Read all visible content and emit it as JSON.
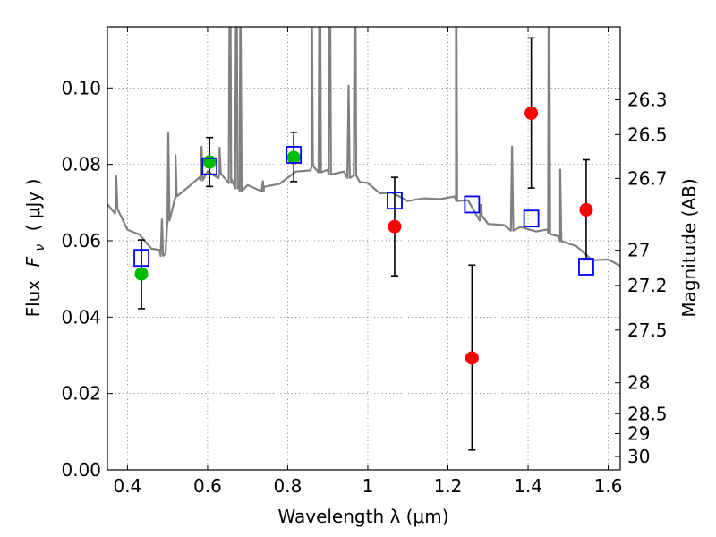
{
  "chart_data": {
    "type": "scatter",
    "xlabel": "Wavelength  λ (μm)",
    "ylabel_left_text": "Flux",
    "ylabel_left_symbol": "F",
    "ylabel_left_symbol_sub": "ν",
    "ylabel_left_unit": "( μJy )",
    "ylabel_right": "Magnitude (AB)",
    "xlim": [
      0.35,
      1.63
    ],
    "ylim": [
      0.0,
      0.116
    ],
    "grid": true,
    "x_ticks": [
      0.4,
      0.6,
      0.8,
      1.0,
      1.2,
      1.4,
      1.6
    ],
    "x_tick_labels": [
      "0.4",
      "0.6",
      "0.8",
      "1",
      "1.2",
      "1.4",
      "1.6"
    ],
    "y_ticks": [
      0.0,
      0.02,
      0.04,
      0.06,
      0.08,
      0.1
    ],
    "y_tick_labels": [
      "0.00",
      "0.02",
      "0.04",
      "0.06",
      "0.08",
      "0.10"
    ],
    "right_ticks": [
      {
        "label": "26.3",
        "flux": 0.0969
      },
      {
        "label": "26.5",
        "flux": 0.0878
      },
      {
        "label": "26.7",
        "flux": 0.0763
      },
      {
        "label": "27",
        "flux": 0.0575
      },
      {
        "label": "27.2",
        "flux": 0.0483
      },
      {
        "label": "27.5",
        "flux": 0.0366
      },
      {
        "label": "28",
        "flux": 0.0228
      },
      {
        "label": "28.5",
        "flux": 0.0147
      },
      {
        "label": "29",
        "flux": 0.0095
      },
      {
        "label": "30",
        "flux": 0.0035
      }
    ],
    "series": [
      {
        "marker": "circle",
        "color": "#00bb00",
        "points": [
          {
            "x": 0.435,
            "y": 0.0513,
            "yerr_low": 0.0422,
            "yerr_high": 0.0602
          },
          {
            "x": 0.605,
            "y": 0.0806,
            "yerr_low": 0.0742,
            "yerr_high": 0.087
          },
          {
            "x": 0.815,
            "y": 0.0818,
            "yerr_low": 0.0755,
            "yerr_high": 0.0884
          }
        ]
      },
      {
        "marker": "circle",
        "color": "#ff0000",
        "points": [
          {
            "x": 1.067,
            "y": 0.0637,
            "yerr_low": 0.0508,
            "yerr_high": 0.0766
          },
          {
            "x": 1.26,
            "y": 0.0293,
            "yerr_low": 0.0052,
            "yerr_high": 0.0536
          },
          {
            "x": 1.408,
            "y": 0.0934,
            "yerr_low": 0.0738,
            "yerr_high": 0.1131
          },
          {
            "x": 1.545,
            "y": 0.0681,
            "yerr_low": 0.055,
            "yerr_high": 0.0812
          }
        ]
      },
      {
        "marker": "open-square",
        "color": "#0000ff",
        "points": [
          {
            "x": 0.435,
            "y": 0.0555
          },
          {
            "x": 0.605,
            "y": 0.0795
          },
          {
            "x": 0.815,
            "y": 0.0825
          },
          {
            "x": 1.067,
            "y": 0.0705
          },
          {
            "x": 1.26,
            "y": 0.0695
          },
          {
            "x": 1.408,
            "y": 0.0658
          },
          {
            "x": 1.545,
            "y": 0.0532
          }
        ]
      }
    ],
    "sed_model": {
      "color": "#808080",
      "continuum": [
        [
          0.35,
          0.069
        ],
        [
          0.37,
          0.068
        ],
        [
          0.4,
          0.0635
        ],
        [
          0.43,
          0.061
        ],
        [
          0.46,
          0.0585
        ],
        [
          0.48,
          0.057
        ],
        [
          0.495,
          0.056
        ],
        [
          0.5,
          0.064
        ],
        [
          0.52,
          0.071
        ],
        [
          0.55,
          0.0745
        ],
        [
          0.58,
          0.076
        ],
        [
          0.6,
          0.0775
        ],
        [
          0.63,
          0.077
        ],
        [
          0.66,
          0.0755
        ],
        [
          0.68,
          0.0735
        ],
        [
          0.7,
          0.074
        ],
        [
          0.74,
          0.0735
        ],
        [
          0.78,
          0.0755
        ],
        [
          0.82,
          0.0775
        ],
        [
          0.86,
          0.079
        ],
        [
          0.9,
          0.078
        ],
        [
          0.94,
          0.0775
        ],
        [
          0.98,
          0.076
        ],
        [
          1.0,
          0.0745
        ],
        [
          1.03,
          0.073
        ],
        [
          1.06,
          0.072
        ],
        [
          1.1,
          0.071
        ],
        [
          1.14,
          0.0705
        ],
        [
          1.18,
          0.0715
        ],
        [
          1.22,
          0.071
        ],
        [
          1.25,
          0.07
        ],
        [
          1.28,
          0.066
        ],
        [
          1.3,
          0.065
        ],
        [
          1.34,
          0.0635
        ],
        [
          1.38,
          0.063
        ],
        [
          1.42,
          0.063
        ],
        [
          1.45,
          0.0625
        ],
        [
          1.48,
          0.0605
        ],
        [
          1.52,
          0.058
        ],
        [
          1.56,
          0.0555
        ],
        [
          1.6,
          0.0545
        ],
        [
          1.63,
          0.054
        ]
      ],
      "lines": [
        {
          "x": 0.372,
          "y": 0.0775
        },
        {
          "x": 0.502,
          "y": 0.089
        },
        {
          "x": 0.486,
          "y": 0.065
        },
        {
          "x": 0.52,
          "y": 0.083
        },
        {
          "x": 0.585,
          "y": 0.084
        },
        {
          "x": 0.63,
          "y": 0.085
        },
        {
          "x": 0.656,
          "y": 0.15
        },
        {
          "x": 0.672,
          "y": 0.15
        },
        {
          "x": 0.682,
          "y": 0.13
        },
        {
          "x": 0.738,
          "y": 0.075
        },
        {
          "x": 0.86,
          "y": 0.13
        },
        {
          "x": 0.88,
          "y": 0.15
        },
        {
          "x": 0.905,
          "y": 0.15
        },
        {
          "x": 0.952,
          "y": 0.1
        },
        {
          "x": 0.968,
          "y": 0.15
        },
        {
          "x": 1.22,
          "y": 0.15
        },
        {
          "x": 1.282,
          "y": 0.07
        },
        {
          "x": 1.36,
          "y": 0.084
        },
        {
          "x": 1.452,
          "y": 0.15
        },
        {
          "x": 1.48,
          "y": 0.078
        }
      ]
    }
  }
}
